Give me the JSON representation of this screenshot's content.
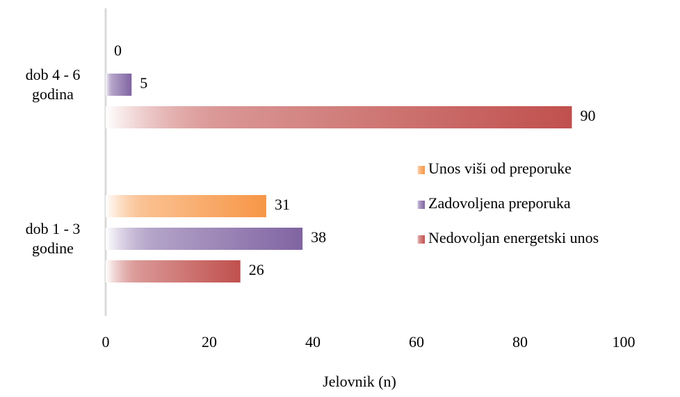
{
  "chart_data": {
    "type": "bar",
    "orientation": "horizontal",
    "x_label": "Jelovnik (n)",
    "categories": [
      "dob 4 - 6 godina",
      "dob 1 - 3 godine"
    ],
    "series": [
      {
        "name": "Unos viši od preporuke",
        "color": "#f79646",
        "values": [
          0,
          31
        ]
      },
      {
        "name": "Zadovoljena preporuka",
        "color": "#8064a2",
        "values": [
          5,
          38
        ]
      },
      {
        "name": "Nedovoljan energetski unos",
        "color": "#c0504d",
        "values": [
          90,
          26
        ]
      }
    ],
    "xlim": [
      0,
      100
    ],
    "xticks": [
      0,
      20,
      40,
      60,
      80,
      100
    ],
    "grid": false,
    "legend": "right"
  }
}
